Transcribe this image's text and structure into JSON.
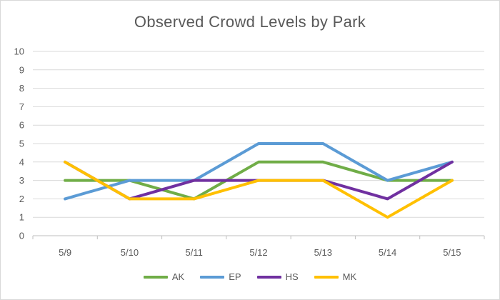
{
  "chart_data": {
    "type": "line",
    "title": "Observed Crowd Levels by Park",
    "xlabel": "",
    "ylabel": "",
    "categories": [
      "5/9",
      "5/10",
      "5/11",
      "5/12",
      "5/13",
      "5/14",
      "5/15"
    ],
    "y_ticks": [
      "0",
      "1",
      "2",
      "3",
      "4",
      "5",
      "6",
      "7",
      "8",
      "9",
      "10"
    ],
    "ylim": [
      0,
      10
    ],
    "grid": true,
    "legend_position": "bottom",
    "series": [
      {
        "name": "AK",
        "color": "#70ad47",
        "values": [
          3,
          3,
          2,
          4,
          4,
          3,
          3
        ]
      },
      {
        "name": "EP",
        "color": "#5b9bd5",
        "values": [
          2,
          3,
          3,
          5,
          5,
          3,
          4
        ]
      },
      {
        "name": "HS",
        "color": "#7030a0",
        "values": [
          4,
          2,
          3,
          3,
          3,
          2,
          4
        ]
      },
      {
        "name": "MK",
        "color": "#ffc000",
        "values": [
          4,
          2,
          2,
          3,
          3,
          1,
          3
        ]
      }
    ]
  }
}
